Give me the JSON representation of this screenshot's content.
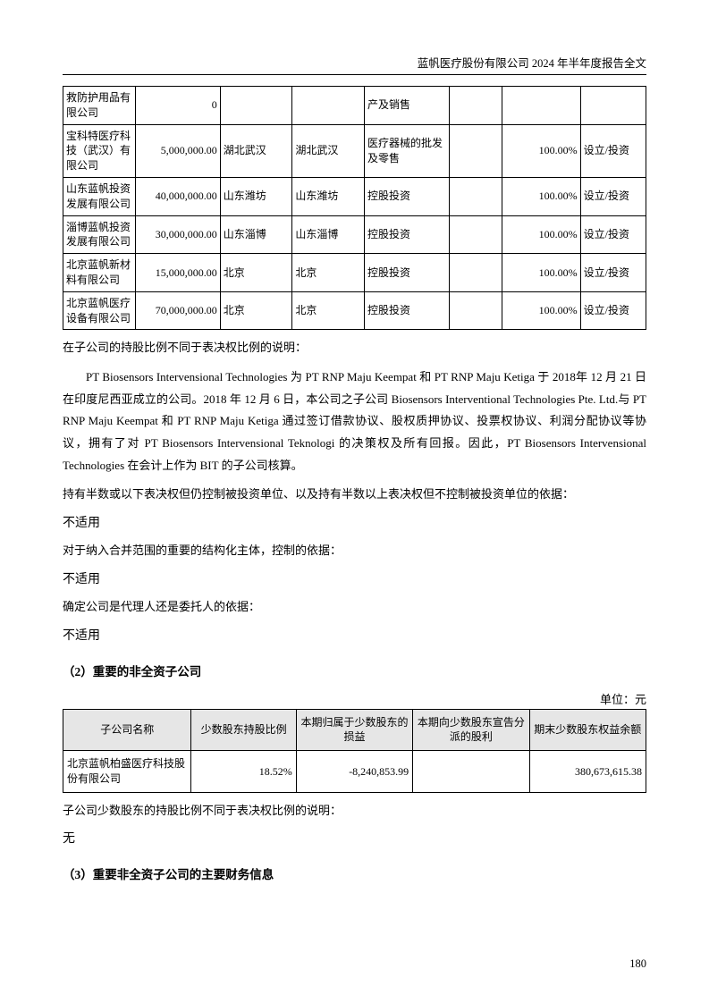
{
  "header": "蓝帆医疗股份有限公司 2024 年半年度报告全文",
  "page_number": "180",
  "table1": {
    "col_widths": [
      "11%",
      "13%",
      "11%",
      "11%",
      "13%",
      "8%",
      "12%",
      "10%"
    ],
    "rows": [
      {
        "c0": "救防护用品有限公司",
        "c1": "0",
        "c2": "",
        "c3": "",
        "c4": "产及销售",
        "c5": "",
        "c6": "",
        "c7": ""
      },
      {
        "c0": "宝科特医疗科技（武汉）有限公司",
        "c1": "5,000,000.00",
        "c2": "湖北武汉",
        "c3": "湖北武汉",
        "c4": "医疗器械的批发及零售",
        "c5": "",
        "c6": "100.00%",
        "c7": "设立/投资"
      },
      {
        "c0": "山东蓝帆投资发展有限公司",
        "c1": "40,000,000.00",
        "c2": "山东潍坊",
        "c3": "山东潍坊",
        "c4": "控股投资",
        "c5": "",
        "c6": "100.00%",
        "c7": "设立/投资"
      },
      {
        "c0": "淄博蓝帆投资发展有限公司",
        "c1": "30,000,000.00",
        "c2": "山东淄博",
        "c3": "山东淄博",
        "c4": "控股投资",
        "c5": "",
        "c6": "100.00%",
        "c7": "设立/投资"
      },
      {
        "c0": "北京蓝帆新材料有限公司",
        "c1": "15,000,000.00",
        "c2": "北京",
        "c3": "北京",
        "c4": "控股投资",
        "c5": "",
        "c6": "100.00%",
        "c7": "设立/投资"
      },
      {
        "c0": "北京蓝帆医疗设备有限公司",
        "c1": "70,000,000.00",
        "c2": "北京",
        "c3": "北京",
        "c4": "控股投资",
        "c5": "",
        "c6": "100.00%",
        "c7": "设立/投资"
      }
    ]
  },
  "text": {
    "p1": "在子公司的持股比例不同于表决权比例的说明：",
    "p2": "PT Biosensors Intervensional Technologies 为 PT RNP Maju Keempat 和 PT RNP Maju Ketiga 于 2018年 12 月 21 日在印度尼西亚成立的公司。2018 年 12 月 6 日，本公司之子公司 Biosensors Interventional Technologies Pte. Ltd.与 PT RNP Maju Keempat 和 PT RNP Maju Ketiga 通过签订借款协议、股权质押协议、投票权协议、利润分配协议等协议，拥有了对 PT Biosensors Intervensional Teknologi 的决策权及所有回报。因此，PT Biosensors Intervensional Technologies 在会计上作为 BIT 的子公司核算。",
    "p3": "持有半数或以下表决权但仍控制被投资单位、以及持有半数以上表决权但不控制被投资单位的依据：",
    "na1": "不适用",
    "p4": "对于纳入合并范围的重要的结构化主体，控制的依据：",
    "na2": "不适用",
    "p5": "确定公司是代理人还是委托人的依据：",
    "na3": "不适用"
  },
  "section2_title": "（2）重要的非全资子公司",
  "unit_label": "单位：元",
  "table2": {
    "headers": [
      "子公司名称",
      "少数股东持股比例",
      "本期归属于少数股东的损益",
      "本期向少数股东宣告分派的股利",
      "期末少数股东权益余额"
    ],
    "row": {
      "c0": "北京蓝帆柏盛医疗科技股份有限公司",
      "c1": "18.52%",
      "c2": "-8,240,853.99",
      "c3": "",
      "c4": "380,673,615.38"
    }
  },
  "text2": {
    "p1": "子公司少数股东的持股比例不同于表决权比例的说明：",
    "na": "无"
  },
  "section3_title": "（3）重要非全资子公司的主要财务信息"
}
